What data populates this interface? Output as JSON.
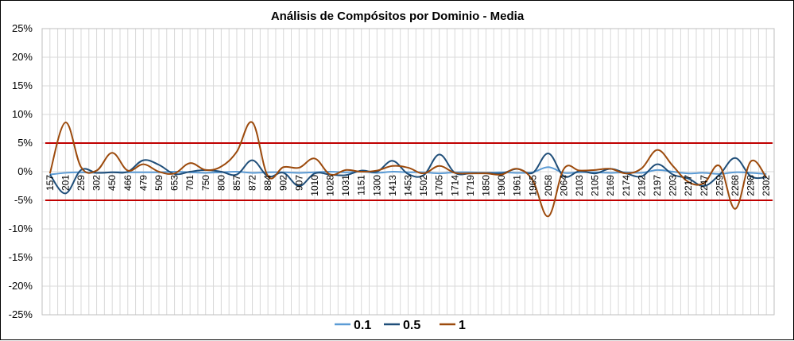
{
  "chart_data": {
    "type": "line",
    "title": "Análisis de Compósitos por Dominio - Media",
    "xlabel": "",
    "ylabel": "",
    "ylim": [
      -25,
      25
    ],
    "y_ticks": [
      "25%",
      "20%",
      "15%",
      "10%",
      "5%",
      "0%",
      "-5%",
      "-10%",
      "-15%",
      "-20%",
      "-25%"
    ],
    "y_tick_values": [
      25,
      20,
      15,
      10,
      5,
      0,
      -5,
      -10,
      -15,
      -20,
      -25
    ],
    "x_tick_labels": [
      "157",
      "201",
      "259",
      "302",
      "450",
      "466",
      "479",
      "509",
      "653",
      "701",
      "750",
      "800",
      "857",
      "872",
      "884",
      "902",
      "907",
      "1010",
      "1028",
      "1031",
      "1151",
      "1300",
      "1413",
      "1453",
      "1502",
      "1705",
      "1714",
      "1719",
      "1850",
      "1900",
      "1961",
      "1965",
      "2058",
      "2064",
      "2103",
      "2105",
      "2169",
      "2174",
      "2192",
      "2197",
      "2203",
      "2217",
      "2247",
      "2259",
      "2268",
      "2298",
      "2302"
    ],
    "grid": "vertical-and-horizontal",
    "legend_position": "bottom",
    "reference_lines": [
      {
        "value": 5,
        "color": "#c00000"
      },
      {
        "value": -5,
        "color": "#c00000"
      }
    ],
    "series": [
      {
        "name": "0.1",
        "color": "#5b9bd5",
        "values": [
          -0.5,
          -0.2,
          -0.1,
          -0.2,
          -0.1,
          -0.1,
          -0.1,
          -0.1,
          0.0,
          -0.1,
          -0.2,
          -0.1,
          0.0,
          -0.2,
          -0.1,
          -0.1,
          -0.2,
          -0.1,
          0.0,
          -0.1,
          0.0,
          -0.2,
          0.0,
          -0.1,
          -0.1,
          -0.3,
          -0.1,
          -0.1,
          -0.2,
          -0.1,
          -0.2,
          -0.1,
          0.8,
          -0.2,
          -0.1,
          -0.1,
          -0.2,
          -0.1,
          -0.2,
          0.3,
          0.0,
          -0.3,
          -0.2,
          -0.4,
          -0.1,
          -0.2,
          -0.4
        ]
      },
      {
        "name": "0.5",
        "color": "#1f4e79",
        "values": [
          -0.5,
          -3.8,
          0.3,
          -0.2,
          -0.1,
          0.0,
          2.0,
          1.2,
          -0.4,
          0.0,
          0.3,
          0.0,
          -0.5,
          2.0,
          -0.8,
          -0.2,
          -2.5,
          -0.3,
          -0.5,
          -0.6,
          0.2,
          0.0,
          1.9,
          -0.4,
          -0.6,
          3.0,
          -0.2,
          -0.3,
          -0.2,
          -0.3,
          0.5,
          -0.2,
          3.2,
          -0.8,
          0.1,
          -0.3,
          0.5,
          -0.3,
          -0.8,
          1.3,
          -0.5,
          -1.2,
          -2.5,
          -0.5,
          2.4,
          -0.8,
          -1.0
        ]
      },
      {
        "name": "1",
        "color": "#9c4a0c",
        "values": [
          -0.3,
          8.6,
          0.8,
          0.2,
          3.3,
          0.2,
          1.3,
          0.0,
          -0.3,
          1.5,
          0.3,
          0.9,
          3.5,
          8.6,
          -0.8,
          0.8,
          0.7,
          2.3,
          -0.5,
          0.3,
          0.0,
          0.2,
          1.0,
          0.7,
          -0.3,
          1.0,
          -0.2,
          -0.3,
          -0.3,
          -0.5,
          0.5,
          -1.5,
          -7.8,
          0.5,
          0.2,
          0.3,
          0.5,
          -0.3,
          0.6,
          3.8,
          1.0,
          -1.8,
          -2.0,
          1.0,
          -6.5,
          1.8,
          -1.0
        ]
      }
    ]
  }
}
